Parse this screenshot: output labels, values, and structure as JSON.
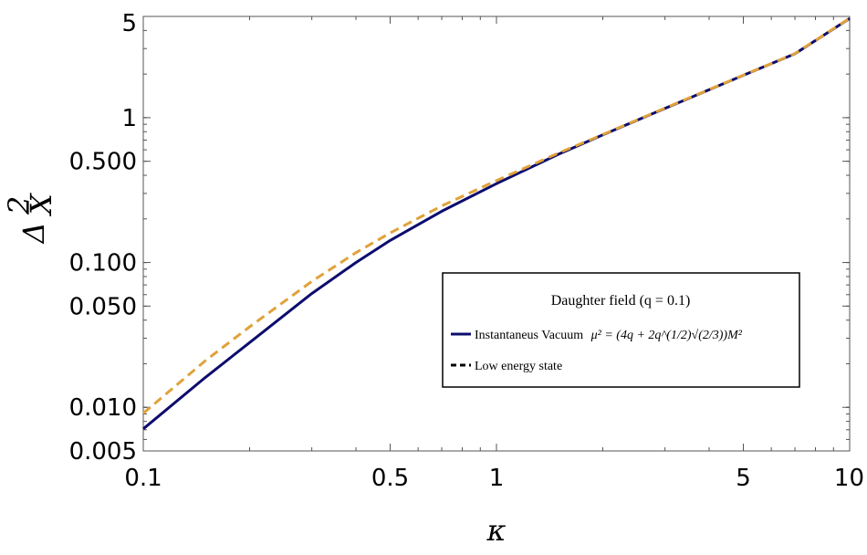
{
  "chart_data": {
    "type": "line",
    "xlabel": "κ",
    "ylabel_base": "Δ",
    "ylabel_sup": "2",
    "ylabel_sub": "X",
    "x_scale": "log",
    "y_scale": "log",
    "xlim": [
      0.1,
      10
    ],
    "ylim": [
      0.005,
      5
    ],
    "x_ticks": [
      {
        "value": 0.1,
        "label": "0.1"
      },
      {
        "value": 0.5,
        "label": "0.5"
      },
      {
        "value": 1,
        "label": "1"
      },
      {
        "value": 5,
        "label": "5"
      },
      {
        "value": 10,
        "label": "10"
      }
    ],
    "y_ticks": [
      {
        "value": 0.005,
        "label": "0.005"
      },
      {
        "value": 0.01,
        "label": "0.010"
      },
      {
        "value": 0.05,
        "label": "0.050"
      },
      {
        "value": 0.1,
        "label": "0.100"
      },
      {
        "value": 0.5,
        "label": "0.500"
      },
      {
        "value": 1,
        "label": "1"
      },
      {
        "value": 5,
        "label": "5"
      }
    ],
    "grid": false,
    "legend": {
      "title": "Daughter field (q = 0.1)",
      "placement": "center-right"
    },
    "series": [
      {
        "name": "Instantaneus Vacuum",
        "name_math": "μ² = (4q + 2q^(1/2)√(2/3))M²",
        "color": "#0c0c6e",
        "dash": "solid",
        "x": [
          0.1,
          0.15,
          0.2,
          0.3,
          0.4,
          0.5,
          0.7,
          1,
          1.5,
          2,
          3,
          5,
          7,
          10
        ],
        "y": [
          0.0071,
          0.0161,
          0.028,
          0.061,
          0.1,
          0.142,
          0.226,
          0.35,
          0.56,
          0.76,
          1.16,
          1.96,
          2.76,
          4.84
        ]
      },
      {
        "name": "Low energy state",
        "color": "#e0a23a",
        "dash": "dashed",
        "x": [
          0.1,
          0.15,
          0.2,
          0.3,
          0.4,
          0.5,
          0.7,
          1,
          1.5,
          2,
          3,
          5,
          7,
          10
        ],
        "y": [
          0.0091,
          0.021,
          0.036,
          0.074,
          0.117,
          0.16,
          0.246,
          0.368,
          0.57,
          0.765,
          1.165,
          1.965,
          2.77,
          4.86
        ]
      }
    ]
  }
}
